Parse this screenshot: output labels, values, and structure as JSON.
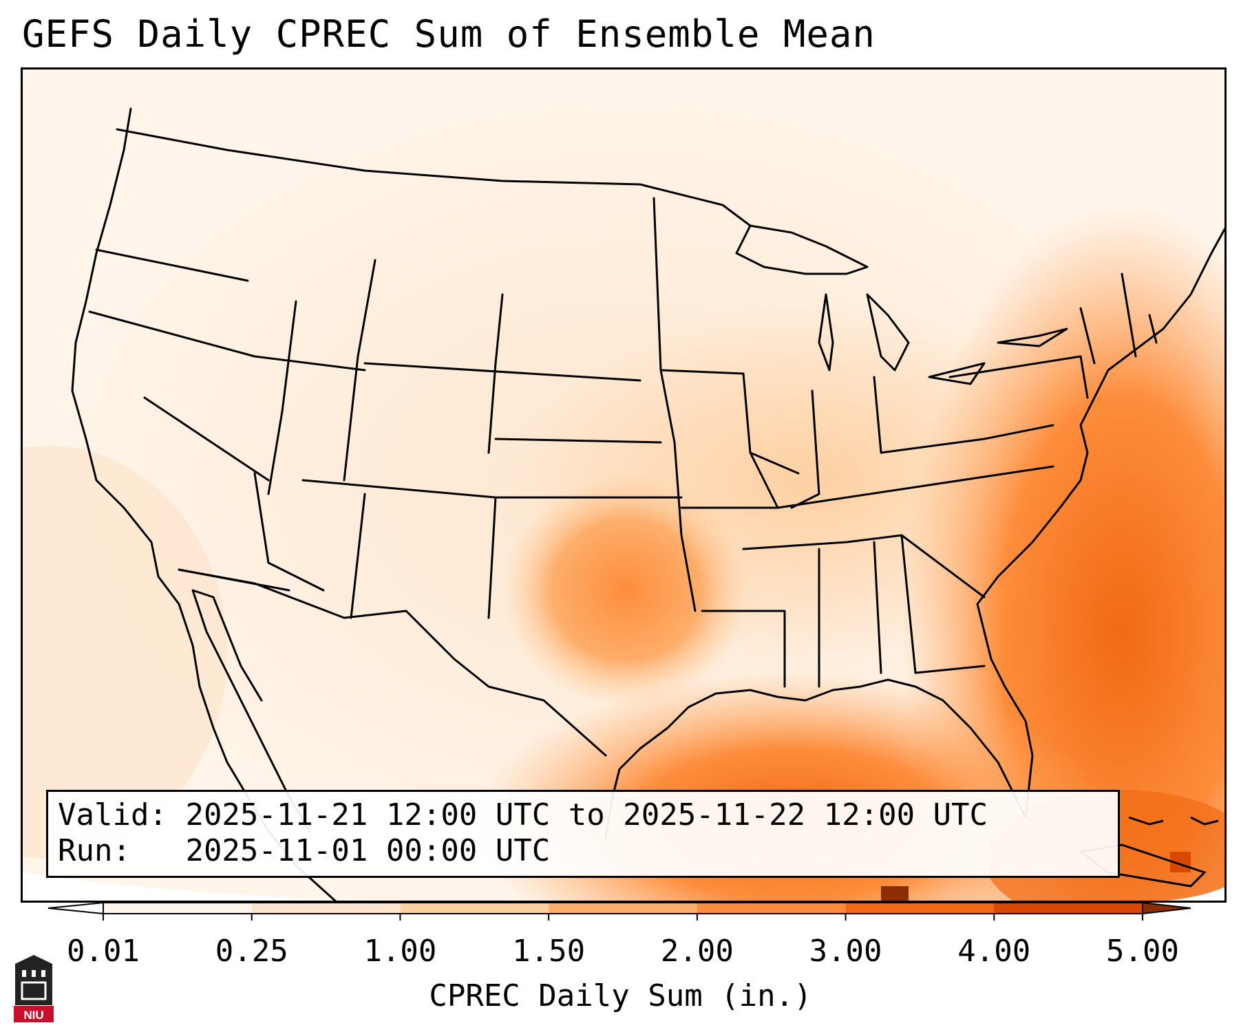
{
  "title": "GEFS Daily CPREC Sum of Ensemble Mean",
  "infobox": {
    "valid_label": "Valid:",
    "valid_value": "2025-11-21 12:00 UTC to 2025-11-22 12:00 UTC",
    "run_label": "Run:",
    "run_value": "2025-11-01 00:00 UTC"
  },
  "colorbar": {
    "label": "CPREC Daily Sum (in.)",
    "ticks": [
      "0.01",
      "0.25",
      "1.00",
      "1.50",
      "2.00",
      "3.00",
      "4.00",
      "5.00"
    ],
    "colors": [
      "#fff5eb",
      "#fee6ce",
      "#fdd0a2",
      "#fdae6b",
      "#fd8d3c",
      "#f16913",
      "#d94801"
    ],
    "under_color": "#ffffff",
    "over_color": "#8c2d04"
  },
  "logo": {
    "text": "NIU",
    "icon": "university-tower-icon"
  }
}
